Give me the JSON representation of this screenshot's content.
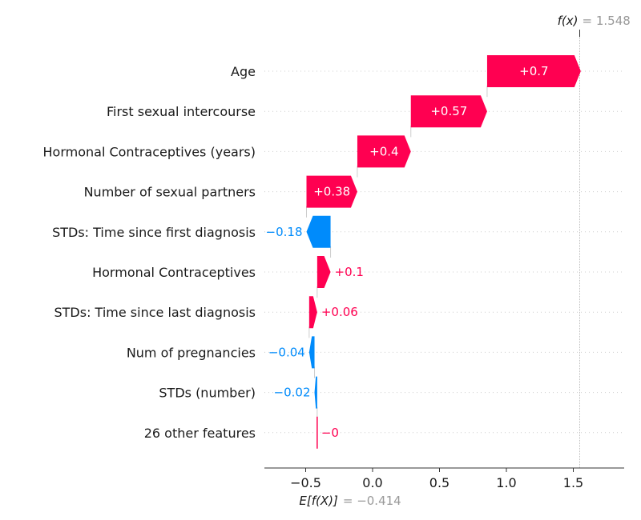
{
  "chart_data": {
    "type": "waterfall",
    "features": [
      {
        "name": "Age",
        "value": 0.7,
        "label": "+0.7"
      },
      {
        "name": "First sexual intercourse",
        "value": 0.57,
        "label": "+0.57"
      },
      {
        "name": "Hormonal Contraceptives (years)",
        "value": 0.4,
        "label": "+0.4"
      },
      {
        "name": "Number of sexual partners",
        "value": 0.38,
        "label": "+0.38"
      },
      {
        "name": "STDs: Time since first diagnosis",
        "value": -0.18,
        "label": "−0.18"
      },
      {
        "name": "Hormonal Contraceptives",
        "value": 0.1,
        "label": "+0.1"
      },
      {
        "name": "STDs: Time since last diagnosis",
        "value": 0.06,
        "label": "+0.06"
      },
      {
        "name": "Num of pregnancies",
        "value": -0.04,
        "label": "−0.04"
      },
      {
        "name": "STDs (number)",
        "value": -0.02,
        "label": "−0.02"
      },
      {
        "name": "26 other features",
        "value": 0,
        "label": "−0"
      }
    ],
    "base_value": -0.414,
    "output_value": 1.548,
    "xlim": [
      -0.85,
      1.88
    ],
    "xticks": [
      -0.5,
      0.0,
      0.5,
      1.0,
      1.5
    ],
    "xtick_labels": [
      "−0.5",
      "0.0",
      "0.5",
      "1.0",
      "1.5"
    ],
    "fx_label": "f(x)",
    "fx_value_text": "= 1.548",
    "base_label": "E[f(X)]",
    "base_value_text": "= −0.414",
    "colors": {
      "positive": "#ff0051",
      "negative": "#008bfb",
      "text_positive": "#ff0051",
      "text_negative": "#008bfb"
    }
  }
}
